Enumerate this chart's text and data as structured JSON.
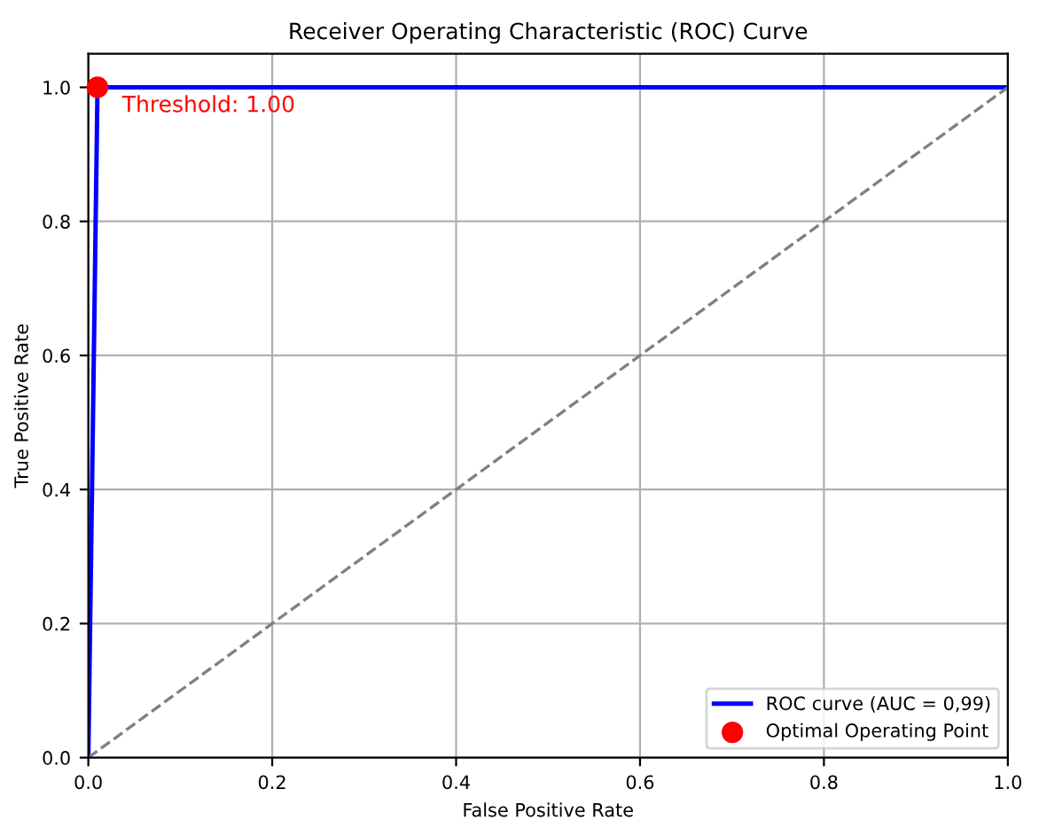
{
  "chart_data": {
    "type": "line",
    "title": "Receiver Operating Characteristic (ROC) Curve",
    "xlabel": "False Positive Rate",
    "ylabel": "True Positive Rate",
    "series": [
      {
        "name": "ROC curve (AUC = 0,99)",
        "color": "#0000ff",
        "x": [
          0,
          0.01,
          1
        ],
        "values": [
          0,
          1,
          1
        ],
        "line_style": "solid",
        "marker": "none"
      },
      {
        "color": "#808080",
        "x": [
          0,
          1
        ],
        "values": [
          0,
          1
        ],
        "line_style": "dashed",
        "marker": "none"
      },
      {
        "name": "Optimal Operating Point",
        "type": "scatter",
        "color": "#ff0000",
        "x": [
          0.01
        ],
        "values": [
          1
        ],
        "marker": "circle"
      }
    ],
    "annotations": [
      {
        "text": "Threshold: 1.00",
        "x": 0.01,
        "y": 1
      }
    ],
    "xlim": [
      0,
      1
    ],
    "ylim": [
      0,
      1.05
    ],
    "xticks": [
      {
        "value": 0,
        "label": "0.0"
      },
      {
        "value": 0.2,
        "label": "0.2"
      },
      {
        "value": 0.4,
        "label": "0.4"
      },
      {
        "value": 0.6,
        "label": "0.6"
      },
      {
        "value": 0.8,
        "label": "0.8"
      },
      {
        "value": 1,
        "label": "1.0"
      }
    ],
    "yticks": [
      {
        "value": 0,
        "label": "0.0"
      },
      {
        "value": 0.2,
        "label": "0.2"
      },
      {
        "value": 0.4,
        "label": "0.4"
      },
      {
        "value": 0.6,
        "label": "0.6"
      },
      {
        "value": 0.8,
        "label": "0.8"
      },
      {
        "value": 1,
        "label": "1.0"
      }
    ],
    "grid": true,
    "legend": "bottom right"
  }
}
